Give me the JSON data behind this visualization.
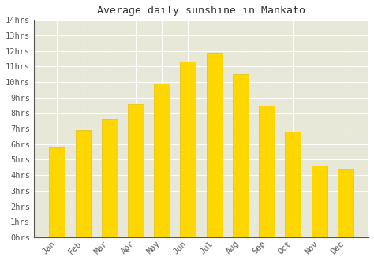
{
  "title": "Average daily sunshine in Mankato",
  "months": [
    "Jan",
    "Feb",
    "Mar",
    "Apr",
    "May",
    "Jun",
    "Jul",
    "Aug",
    "Sep",
    "Oct",
    "Nov",
    "Dec"
  ],
  "values": [
    5.8,
    6.9,
    7.6,
    8.6,
    9.9,
    11.3,
    11.9,
    10.5,
    8.5,
    6.8,
    4.6,
    4.4
  ],
  "bar_color": "#FFD700",
  "bar_edge_color": "#E8C000",
  "plot_background": "#e8e8d8",
  "figure_background": "#ffffff",
  "grid_color": "#ffffff",
  "ylim": [
    0,
    14
  ],
  "ytick_step": 1,
  "title_fontsize": 9.5,
  "tick_fontsize": 7.5,
  "font_family": "monospace",
  "bar_width": 0.6
}
